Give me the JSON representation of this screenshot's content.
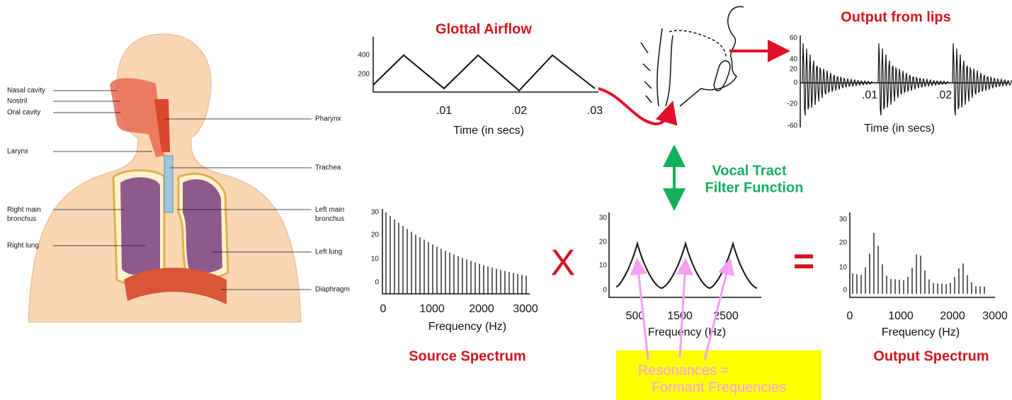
{
  "anatomy": {
    "labels_left": [
      "Nasal cavity",
      "Nostril",
      "Oral cavity",
      "Larynx",
      "Right main\nbronchus",
      "Right lung"
    ],
    "labels_right": [
      "Pharynx",
      "Trachea",
      "Left main\nbronchus",
      "Left lung",
      "Diaphragm"
    ]
  },
  "glottal": {
    "title": "Glottal Airflow",
    "yticks": [
      "400",
      "200"
    ],
    "xticks": [
      ".01",
      ".02",
      ".03"
    ],
    "xlabel": "Time (in secs)"
  },
  "lips": {
    "title": "Output from lips",
    "yticks": [
      "60",
      "40",
      "20",
      "0",
      "-20",
      "-60"
    ],
    "xticks": [
      ".01",
      ".02"
    ],
    "xlabel": "Time (in secs)"
  },
  "source": {
    "title": "Source Spectrum",
    "yticks": [
      "30",
      "20",
      "10",
      "0"
    ],
    "xticks": [
      "0",
      "1000",
      "2000",
      "3000"
    ],
    "xlabel": "Frequency (Hz)"
  },
  "filter": {
    "label": [
      "Vocal Tract",
      "Filter Function"
    ],
    "yticks": [
      "30",
      "20",
      "10",
      "0"
    ],
    "xticks": [
      "500",
      "1500",
      "2500"
    ],
    "xlabel": "Frequency (Hz)"
  },
  "output": {
    "title": "Output Spectrum",
    "yticks": [
      "30",
      "20",
      "10",
      "0"
    ],
    "xticks": [
      "0",
      "1000",
      "2000",
      "3000"
    ],
    "xlabel": "Frequency (Hz)"
  },
  "operators": [
    "X",
    "="
  ],
  "resonance_box": [
    "Resonances =",
    "Formant Frequencies"
  ]
}
